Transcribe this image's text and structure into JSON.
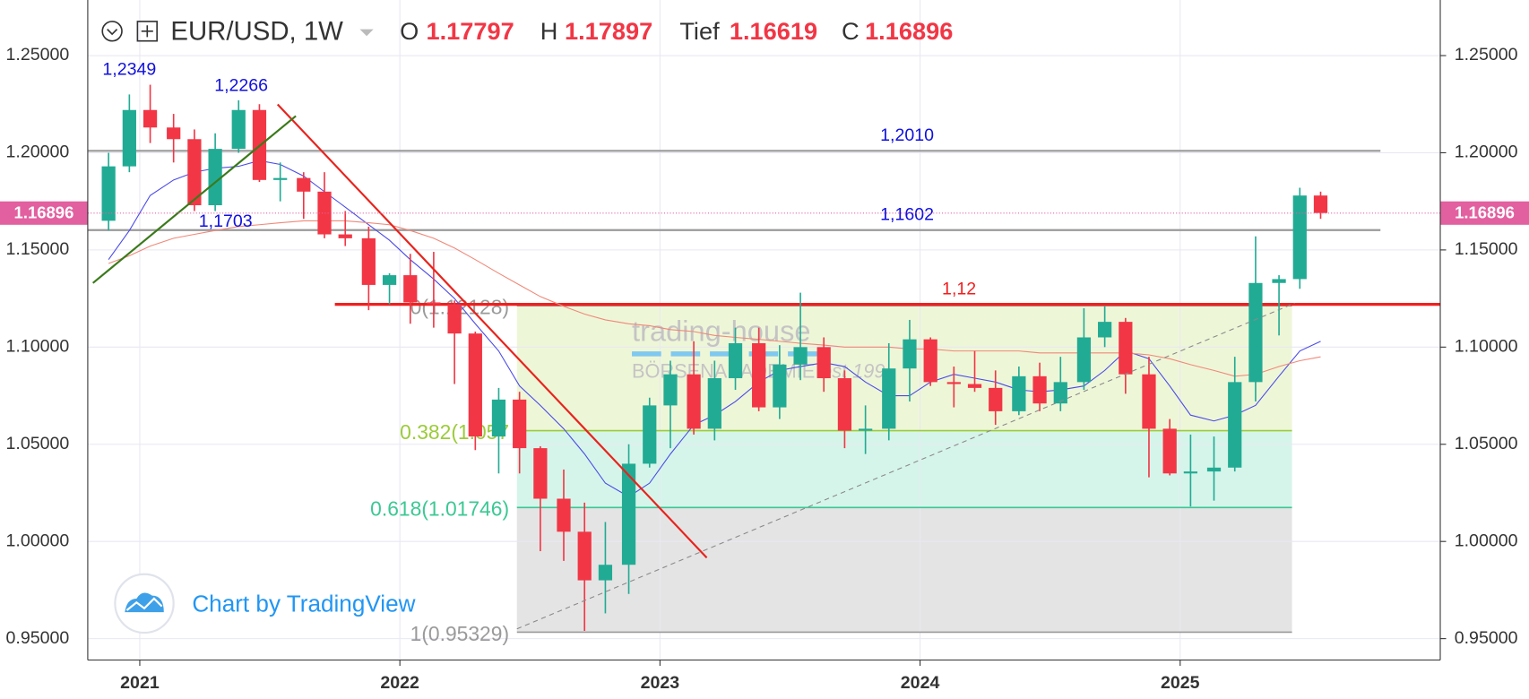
{
  "chart_data": {
    "type": "candlestick",
    "symbol": "EUR/USD, 1W",
    "ohlc_header": [
      {
        "label": "O",
        "value": 1.17797
      },
      {
        "label": "H",
        "value": 1.17897
      },
      {
        "label": "Tief",
        "value": 1.16619
      },
      {
        "label": "C",
        "value": 1.16896
      }
    ],
    "x": [
      2020.88,
      2020.96,
      2021.04,
      2021.13,
      2021.21,
      2021.29,
      2021.38,
      2021.46,
      2021.54,
      2021.63,
      2021.71,
      2021.79,
      2021.88,
      2021.96,
      2022.04,
      2022.13,
      2022.21,
      2022.29,
      2022.38,
      2022.46,
      2022.54,
      2022.63,
      2022.71,
      2022.79,
      2022.88,
      2022.96,
      2023.04,
      2023.13,
      2023.21,
      2023.29,
      2023.38,
      2023.46,
      2023.54,
      2023.63,
      2023.71,
      2023.79,
      2023.88,
      2023.96,
      2024.04,
      2024.13,
      2024.21,
      2024.29,
      2024.38,
      2024.46,
      2024.54,
      2024.63,
      2024.71,
      2024.79,
      2024.88,
      2024.96,
      2025.04,
      2025.13,
      2025.21,
      2025.29,
      2025.38,
      2025.46,
      2025.54
    ],
    "open": [
      1.165,
      1.193,
      1.222,
      1.213,
      1.207,
      1.173,
      1.202,
      1.222,
      1.186,
      1.187,
      1.18,
      1.158,
      1.156,
      1.132,
      1.137,
      1.123,
      1.122,
      1.107,
      1.054,
      1.073,
      1.048,
      1.022,
      1.005,
      0.98,
      0.988,
      1.04,
      1.07,
      1.086,
      1.058,
      1.084,
      1.102,
      1.069,
      1.091,
      1.1,
      1.084,
      1.057,
      1.058,
      1.089,
      1.104,
      1.082,
      1.081,
      1.079,
      1.067,
      1.085,
      1.071,
      1.082,
      1.105,
      1.113,
      1.086,
      1.058,
      1.035,
      1.036,
      1.038,
      1.082,
      1.133,
      1.135,
      1.178
    ],
    "high": [
      1.2,
      1.23,
      1.235,
      1.22,
      1.212,
      1.21,
      1.227,
      1.225,
      1.195,
      1.19,
      1.19,
      1.17,
      1.162,
      1.138,
      1.148,
      1.149,
      1.124,
      1.108,
      1.079,
      1.077,
      1.049,
      1.037,
      1.02,
      1.01,
      1.05,
      1.074,
      1.093,
      1.103,
      1.093,
      1.11,
      1.11,
      1.101,
      1.128,
      1.105,
      1.088,
      1.07,
      1.102,
      1.114,
      1.105,
      1.09,
      1.098,
      1.088,
      1.09,
      1.092,
      1.095,
      1.12,
      1.121,
      1.115,
      1.095,
      1.063,
      1.055,
      1.054,
      1.095,
      1.157,
      1.137,
      1.182,
      1.18
    ],
    "low": [
      1.16,
      1.19,
      1.205,
      1.195,
      1.17,
      1.17,
      1.2,
      1.185,
      1.175,
      1.166,
      1.156,
      1.152,
      1.119,
      1.122,
      1.112,
      1.11,
      1.081,
      1.047,
      1.035,
      1.035,
      0.995,
      0.99,
      0.954,
      0.963,
      0.973,
      1.038,
      1.048,
      1.055,
      1.052,
      1.078,
      1.067,
      1.063,
      1.083,
      1.077,
      1.048,
      1.045,
      1.052,
      1.072,
      1.08,
      1.069,
      1.077,
      1.06,
      1.065,
      1.067,
      1.067,
      1.078,
      1.1,
      1.076,
      1.033,
      1.034,
      1.018,
      1.021,
      1.036,
      1.072,
      1.106,
      1.13,
      1.166
    ],
    "close": [
      1.193,
      1.222,
      1.213,
      1.207,
      1.173,
      1.202,
      1.222,
      1.186,
      1.187,
      1.18,
      1.158,
      1.156,
      1.132,
      1.137,
      1.123,
      1.122,
      1.107,
      1.054,
      1.073,
      1.048,
      1.022,
      1.005,
      0.98,
      0.988,
      1.04,
      1.07,
      1.086,
      1.058,
      1.084,
      1.102,
      1.069,
      1.091,
      1.1,
      1.084,
      1.057,
      1.058,
      1.089,
      1.104,
      1.082,
      1.081,
      1.079,
      1.067,
      1.085,
      1.071,
      1.082,
      1.105,
      1.113,
      1.086,
      1.058,
      1.035,
      1.036,
      1.038,
      1.082,
      1.133,
      1.135,
      1.178,
      1.169
    ],
    "up_color": "#22ab94",
    "down_color": "#f23645",
    "moving_averages": [
      {
        "color": "#4a4ae8",
        "values": [
          1.145,
          1.16,
          1.178,
          1.186,
          1.19,
          1.192,
          1.193,
          1.196,
          1.194,
          1.188,
          1.18,
          1.172,
          1.163,
          1.155,
          1.145,
          1.135,
          1.125,
          1.112,
          1.098,
          1.08,
          1.07,
          1.058,
          1.045,
          1.03,
          1.023,
          1.03,
          1.045,
          1.06,
          1.065,
          1.072,
          1.082,
          1.088,
          1.09,
          1.092,
          1.09,
          1.082,
          1.075,
          1.075,
          1.082,
          1.086,
          1.084,
          1.082,
          1.078,
          1.077,
          1.078,
          1.08,
          1.088,
          1.098,
          1.094,
          1.08,
          1.065,
          1.062,
          1.065,
          1.07,
          1.085,
          1.098,
          1.103
        ]
      },
      {
        "color": "#f08878",
        "values": [
          1.143,
          1.147,
          1.152,
          1.156,
          1.158,
          1.16,
          1.162,
          1.163,
          1.164,
          1.165,
          1.165,
          1.165,
          1.164,
          1.163,
          1.16,
          1.156,
          1.151,
          1.145,
          1.138,
          1.132,
          1.126,
          1.121,
          1.117,
          1.114,
          1.112,
          1.111,
          1.109,
          1.108,
          1.106,
          1.105,
          1.104,
          1.103,
          1.102,
          1.101,
          1.1,
          1.1,
          1.1,
          1.099,
          1.099,
          1.098,
          1.098,
          1.098,
          1.098,
          1.097,
          1.097,
          1.097,
          1.097,
          1.097,
          1.096,
          1.094,
          1.091,
          1.088,
          1.085,
          1.086,
          1.09,
          1.093,
          1.095
        ]
      }
    ],
    "xlim": [
      2020.8,
      2026.0
    ],
    "xticks": [
      2021,
      2022,
      2023,
      2024,
      2025
    ],
    "ylim": [
      0.939,
      1.2786
    ],
    "yticks": [
      {
        "value": 0.95,
        "label": "0.95000"
      },
      {
        "value": 1.0,
        "label": "1.00000"
      },
      {
        "value": 1.05,
        "label": "1.05000"
      },
      {
        "value": 1.1,
        "label": "1.10000"
      },
      {
        "value": 1.15,
        "label": "1.15000"
      },
      {
        "value": 1.2,
        "label": "1.20000"
      },
      {
        "value": 1.25,
        "label": "1.25000"
      }
    ],
    "grid": true,
    "last_price": 1.16896,
    "last_price_color": "#e2609f",
    "hlines": [
      {
        "value": 1.201,
        "label": "1,2010",
        "color": "#9a9a9a",
        "xrange": [
          2020.8,
          2025.77
        ],
        "label_x": 2023.95,
        "label_color": "#1010e0"
      },
      {
        "value": 1.1602,
        "label": "1,1602",
        "color": "#9a9a9a",
        "xrange": [
          2020.8,
          2025.77
        ],
        "label_x": 2023.95,
        "label_color": "#1010e0"
      },
      {
        "value": 1.122,
        "label": "1,12",
        "color": "#f21e1e",
        "xrange": [
          2021.75,
          2026.0
        ],
        "label_x": 2024.15,
        "label_color": "#f21e1e"
      }
    ],
    "annotations": [
      {
        "text": "1,2349",
        "x": 2020.96,
        "y": 1.2349,
        "position": "above",
        "color": "#1010e0"
      },
      {
        "text": "1,2266",
        "x": 2021.39,
        "y": 1.2266,
        "position": "above",
        "color": "#1010e0"
      },
      {
        "text": "1,1703",
        "x": 2021.33,
        "y": 1.1703,
        "position": "below",
        "color": "#1010e0"
      }
    ],
    "fib": {
      "xrange": [
        2022.45,
        2025.43
      ],
      "levels": [
        {
          "value": 1.12128,
          "label": "0(1.12128)",
          "color": "#9a9a9a"
        },
        {
          "value": 1.057,
          "label": "0.382(1.057",
          "color": "#9ccb3a"
        },
        {
          "value": 1.01746,
          "label": "0.618(1.01746)",
          "color": "#3cc894"
        },
        {
          "value": 0.95329,
          "label": "1(0.95329)",
          "color": "#9a9a9a"
        }
      ],
      "zone_colors": [
        "#eef6d8",
        "#d6f5ea",
        "#e4e4e4"
      ]
    },
    "trendlines": [
      {
        "x": [
          2021.53,
          2023.18
        ],
        "y": [
          1.2249,
          0.9916
        ],
        "color": "#e8231d",
        "dashed": false
      },
      {
        "x": [
          2020.82,
          2021.6
        ],
        "y": [
          1.133,
          1.2189
        ],
        "color": "#3a7a1a",
        "dashed": false
      },
      {
        "x": [
          2022.45,
          2025.44
        ],
        "y": [
          0.955,
          1.1226
        ],
        "color": "#8a8a8a",
        "dashed": true
      }
    ],
    "watermark": {
      "name": "trading-house",
      "sub": "BÖRSENAKADEMIE",
      "est": "est 199"
    },
    "attribution": "Chart by TradingView"
  }
}
